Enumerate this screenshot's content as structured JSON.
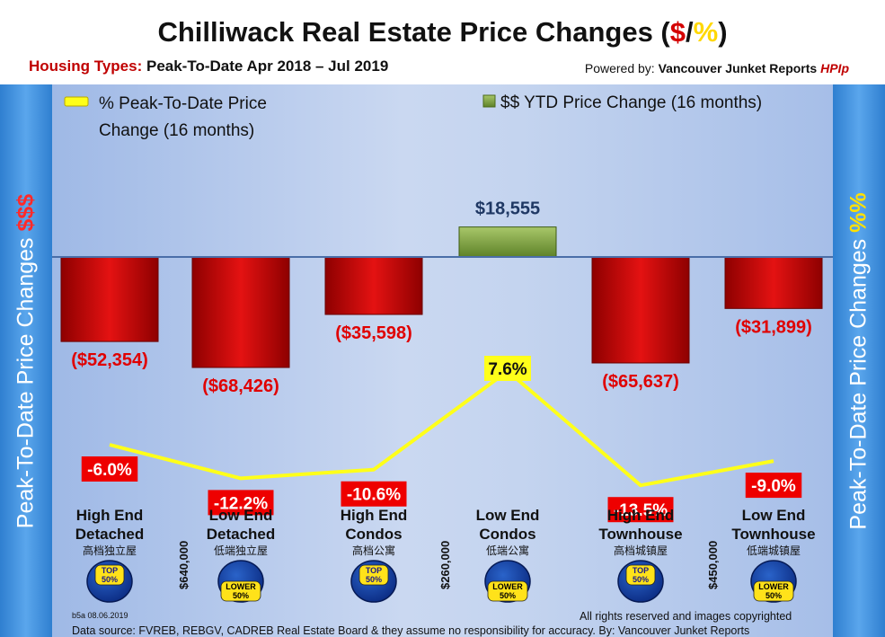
{
  "header": {
    "title_main": "Chilliwack Real Estate Price Changes (",
    "title_dollar": "$",
    "title_slash": "/",
    "title_pct": "%",
    "title_end": ")",
    "subtitle_label": "Housing Types:",
    "subtitle_range": "Peak-To-Date Apr 2018 – Jul 2019",
    "powered_prefix": "Powered by:",
    "powered_name": "Vancouver Junket Reports",
    "powered_hpi": "HPIp"
  },
  "side_left": {
    "text": "Peak-To-Date Price Changes ",
    "accent": "$$$"
  },
  "side_right": {
    "text": "Peak-To-Date  Price  Changes ",
    "accent": "%%"
  },
  "colors": {
    "bar_negative": "#cc0000",
    "bar_positive": "#7ba13b",
    "line": "#ffff1a",
    "baseline": "#4a6ea8"
  },
  "chart_data": {
    "type": "bar",
    "title": "Chilliwack Real Estate Price Changes ($/%)",
    "categories": [
      "High End Detached",
      "Low End Detached",
      "High End Condos",
      "Low End Condos",
      "High End Townhouse",
      "Low End Townhouse"
    ],
    "categories_line1": [
      "High End",
      "Low End",
      "High End",
      "Low End",
      "High End",
      "Low End"
    ],
    "categories_line2": [
      "Detached",
      "Detached",
      "Condos",
      "Condos",
      "Townhouse",
      "Townhouse"
    ],
    "categories_zh": [
      "高档独立屋",
      "低端独立屋",
      "高档公寓",
      "低端公寓",
      "高档城镇屋",
      "低端城镇屋"
    ],
    "legend": [
      "% Peak-To-Date Price Change (16 months)",
      "$$ YTD Price Change (16 months)"
    ],
    "legend_line1": "% Peak-To-Date Price",
    "legend_line2": "Change (16 months)",
    "legend_bar": "$$ YTD Price Change (16 months)",
    "series": [
      {
        "name": "$$ YTD Price Change (16 months)",
        "type": "bar",
        "values": [
          -52354,
          -68426,
          -35598,
          18555,
          -65637,
          -31899
        ],
        "labels": [
          "($52,354)",
          "($68,426)",
          "($35,598)",
          "$18,555",
          "($65,637)",
          "($31,899)"
        ]
      },
      {
        "name": "% Peak-To-Date Price Change (16 months)",
        "type": "line",
        "values": [
          -6.0,
          -12.2,
          -10.6,
          7.6,
          -13.5,
          -9.0
        ],
        "labels": [
          "-6.0%",
          "-12.2%",
          "-10.6%",
          "7.6%",
          "-13.5%",
          "-9.0%"
        ]
      }
    ],
    "price_thresholds": [
      "$640,000",
      "$260,000",
      "$450,000"
    ],
    "badges": [
      {
        "line1": "TOP",
        "line2": "50%",
        "kind": "top"
      },
      {
        "line1": "LOWER",
        "line2": "50%",
        "kind": "lower"
      },
      {
        "line1": "TOP",
        "line2": "50%",
        "kind": "top"
      },
      {
        "line1": "LOWER",
        "line2": "50%",
        "kind": "lower"
      },
      {
        "line1": "TOP",
        "line2": "50%",
        "kind": "top"
      },
      {
        "line1": "LOWER",
        "line2": "50%",
        "kind": "lower"
      }
    ]
  },
  "footer": {
    "code": "b5a 08.06.2019",
    "rights": "All rights reserved and  images copyrighted",
    "source": "Data source: FVREB, REBGV, CADREB Real Estate Board & they assume no responsibility for accuracy. By: Vancouver Junket Reports"
  }
}
